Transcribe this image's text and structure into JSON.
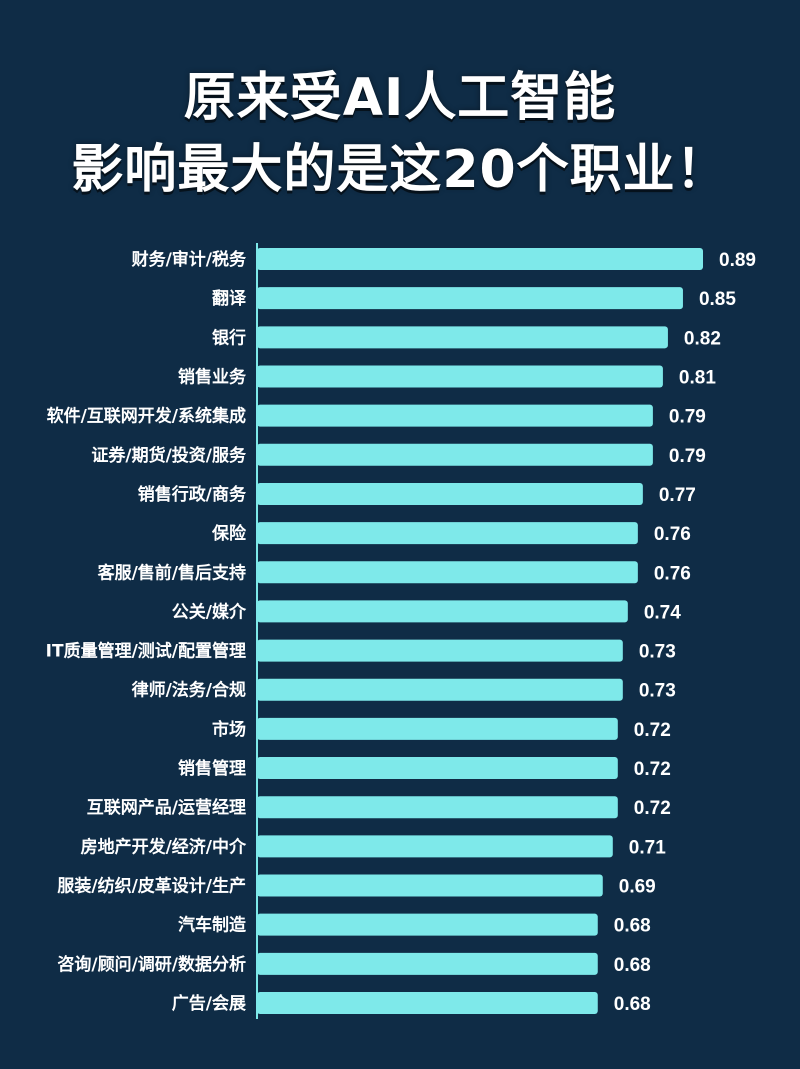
{
  "title": {
    "line1": "原来受AI人工智能",
    "line2": "影响最大的是这20个职业！"
  },
  "colors": {
    "background": "#0f2c46",
    "bar": "#7ee9ea",
    "text": "#ffffff",
    "axis": "#7ee9ea"
  },
  "chart_data": {
    "type": "bar",
    "orientation": "horizontal",
    "title": "原来受AI人工智能影响最大的是这20个职业！",
    "xlabel": "",
    "ylabel": "",
    "grid": false,
    "legend": "none",
    "xlim": [
      0,
      0.89
    ],
    "categories": [
      "财务/审计/税务",
      "翻译",
      "银行",
      "销售业务",
      "软件/互联网开发/系统集成",
      "证券/期货/投资/服务",
      "销售行政/商务",
      "保险",
      "客服/售前/售后支持",
      "公关/媒介",
      "IT质量管理/测试/配置管理",
      "律师/法务/合规",
      "市场",
      "销售管理",
      "互联网产品/运营经理",
      "房地产开发/经济/中介",
      "服装/纺织/皮革设计/生产",
      "汽车制造",
      "咨询/顾问/调研/数据分析",
      "广告/会展"
    ],
    "values": [
      0.89,
      0.85,
      0.82,
      0.81,
      0.79,
      0.79,
      0.77,
      0.76,
      0.76,
      0.74,
      0.73,
      0.73,
      0.72,
      0.72,
      0.72,
      0.71,
      0.69,
      0.68,
      0.68,
      0.68
    ],
    "value_labels": [
      "0.89",
      "0.85",
      "0.82",
      "0.81",
      "0.79",
      "0.79",
      "0.77",
      "0.76",
      "0.76",
      "0.74",
      "0.73",
      "0.73",
      "0.72",
      "0.72",
      "0.72",
      "0.71",
      "0.69",
      "0.68",
      "0.68",
      "0.68"
    ]
  }
}
